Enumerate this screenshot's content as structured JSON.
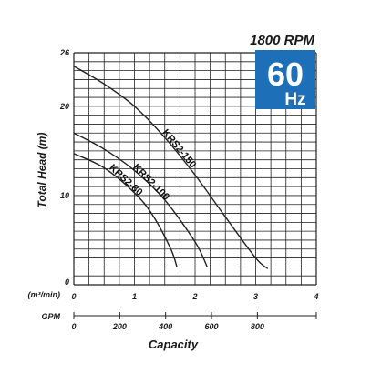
{
  "rpm_label": "1800 RPM",
  "badge": {
    "value": "60",
    "unit": "Hz",
    "color": "#1d6fb8"
  },
  "chart_data": {
    "type": "line",
    "xlabel": "Capacity",
    "ylabel": "Total Head (m)",
    "x_unit_label": "(m³/min)",
    "x2_unit_label": "GPM",
    "xlim": [
      0,
      4
    ],
    "ylim": [
      0,
      26
    ],
    "x_ticks": [
      "0",
      "1",
      "2",
      "3",
      "4"
    ],
    "y_ticks": [
      "0",
      "10",
      "20",
      "26"
    ],
    "x2_ticks": [
      "0",
      "200",
      "400",
      "600",
      "800"
    ],
    "x2_tick_values": [
      0,
      0.757,
      1.514,
      2.271,
      3.028
    ],
    "grid": true,
    "series": [
      {
        "name": "KRS2-150",
        "x": [
          0,
          0.5,
          1.0,
          1.5,
          2.0,
          2.5,
          3.0,
          3.2
        ],
        "y": [
          24.5,
          22.5,
          20.0,
          16.5,
          12.3,
          7.6,
          3.0,
          1.8
        ]
      },
      {
        "name": "KRS2-100",
        "x": [
          0,
          0.5,
          1.0,
          1.5,
          2.0,
          2.2
        ],
        "y": [
          17.0,
          15.2,
          12.8,
          9.5,
          4.8,
          2.0
        ]
      },
      {
        "name": "KRS2-80",
        "x": [
          0,
          0.5,
          1.0,
          1.3,
          1.6,
          1.7
        ],
        "y": [
          14.7,
          13.1,
          10.3,
          7.8,
          4.0,
          2.0
        ]
      }
    ]
  }
}
